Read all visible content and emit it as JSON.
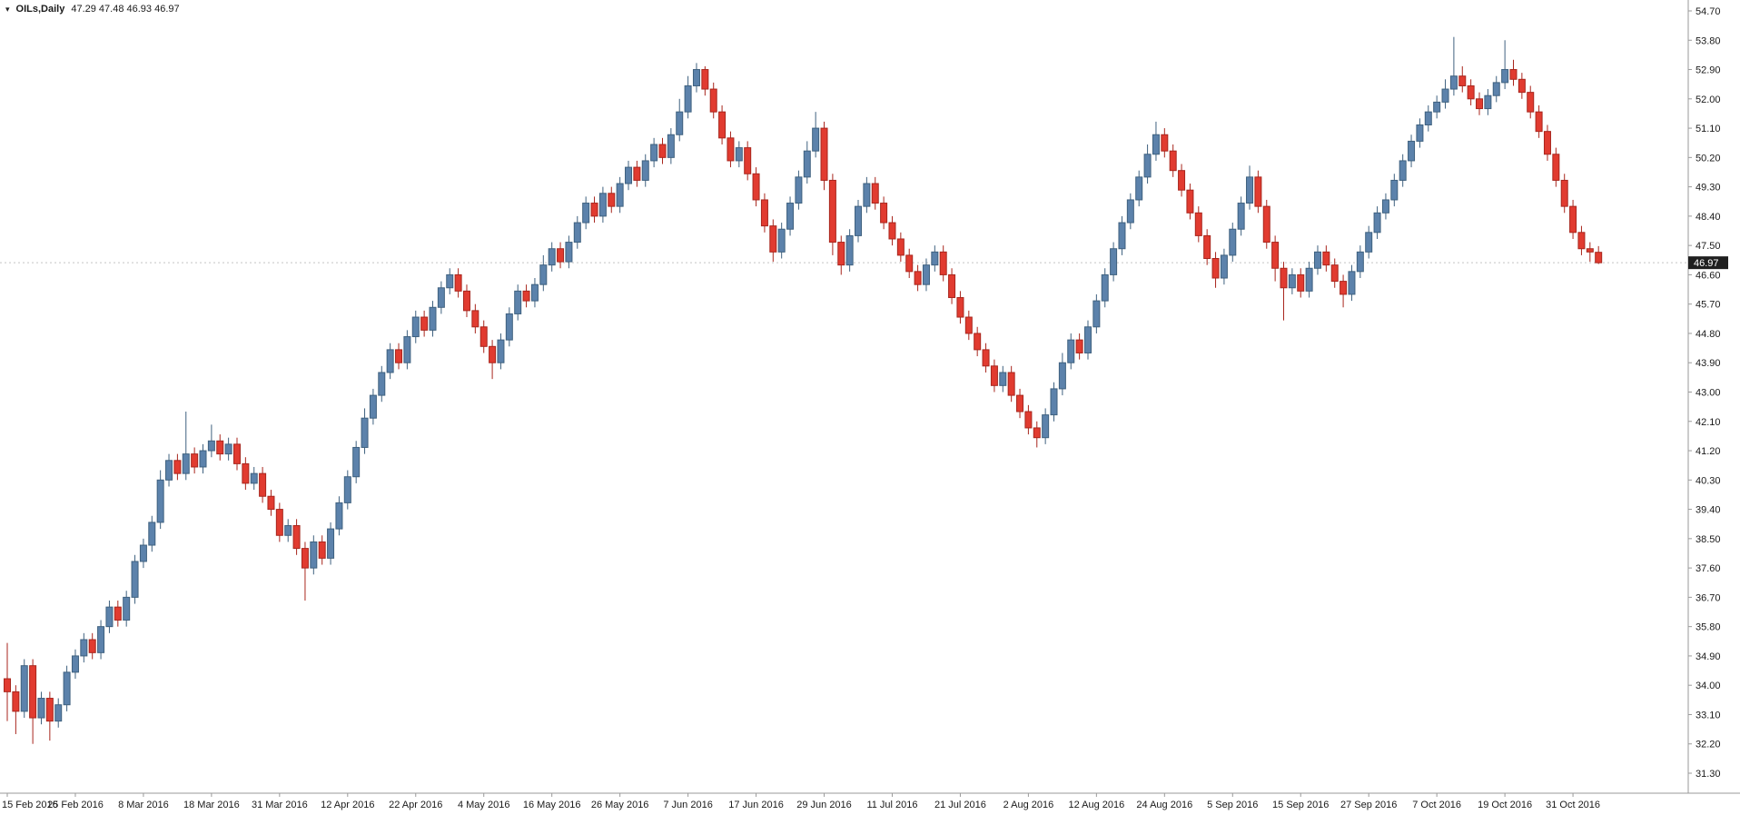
{
  "header": {
    "symbol_timeframe": "OILs,Daily",
    "ohlc_values": "47.29 47.48 46.93 46.97"
  },
  "chart_data": {
    "type": "candlestick",
    "symbol": "OILs",
    "timeframe": "Daily",
    "title": "OILs,Daily",
    "last_bar": {
      "open": 47.29,
      "high": 47.48,
      "low": 46.93,
      "close": 46.97
    },
    "current_price": 46.97,
    "current_price_label": "46.97",
    "y_axis": {
      "min": 31.3,
      "max": 54.7,
      "step": 0.9,
      "side": "right"
    },
    "y_ticks": [
      "54.70",
      "53.80",
      "52.90",
      "52.00",
      "51.10",
      "50.20",
      "49.30",
      "48.40",
      "47.50",
      "46.60",
      "45.70",
      "44.80",
      "43.90",
      "43.00",
      "42.10",
      "41.20",
      "40.30",
      "39.40",
      "38.50",
      "37.60",
      "36.70",
      "35.80",
      "34.90",
      "34.00",
      "33.10",
      "32.20",
      "31.30"
    ],
    "x_labels": [
      {
        "i": 0,
        "label": "15 Feb 2016"
      },
      {
        "i": 8,
        "label": "25 Feb 2016"
      },
      {
        "i": 16,
        "label": "8 Mar 2016"
      },
      {
        "i": 24,
        "label": "18 Mar 2016"
      },
      {
        "i": 32,
        "label": "31 Mar 2016"
      },
      {
        "i": 40,
        "label": "12 Apr 2016"
      },
      {
        "i": 48,
        "label": "22 Apr 2016"
      },
      {
        "i": 56,
        "label": "4 May 2016"
      },
      {
        "i": 64,
        "label": "16 May 2016"
      },
      {
        "i": 72,
        "label": "26 May 2016"
      },
      {
        "i": 80,
        "label": "7 Jun 2016"
      },
      {
        "i": 88,
        "label": "17 Jun 2016"
      },
      {
        "i": 96,
        "label": "29 Jun 2016"
      },
      {
        "i": 104,
        "label": "11 Jul 2016"
      },
      {
        "i": 112,
        "label": "21 Jul 2016"
      },
      {
        "i": 120,
        "label": "2 Aug 2016"
      },
      {
        "i": 128,
        "label": "12 Aug 2016"
      },
      {
        "i": 136,
        "label": "24 Aug 2016"
      },
      {
        "i": 144,
        "label": "5 Sep 2016"
      },
      {
        "i": 152,
        "label": "15 Sep 2016"
      },
      {
        "i": 160,
        "label": "27 Sep 2016"
      },
      {
        "i": 168,
        "label": "7 Oct 2016"
      },
      {
        "i": 176,
        "label": "19 Oct 2016"
      },
      {
        "i": 184,
        "label": "31 Oct 2016"
      }
    ],
    "colors": {
      "up_fill": "#5c82ab",
      "up_border": "#3f617f",
      "down_fill": "#e13b30",
      "down_border": "#a8261d",
      "axis_line": "#9a9a9a",
      "axis_text": "#1a1a1a",
      "price_line": "#c4c4c4",
      "price_tag_bg": "#1f1f1f",
      "price_tag_text": "#ffffff",
      "background": "#ffffff"
    },
    "candles": [
      [
        34.2,
        35.3,
        32.9,
        33.8
      ],
      [
        33.8,
        34,
        32.5,
        33.2
      ],
      [
        33.2,
        34.8,
        33,
        34.6
      ],
      [
        34.6,
        34.8,
        32.2,
        33
      ],
      [
        33,
        33.8,
        32.8,
        33.6
      ],
      [
        33.6,
        33.8,
        32.3,
        32.9
      ],
      [
        32.9,
        33.6,
        32.7,
        33.4
      ],
      [
        33.4,
        34.6,
        33.2,
        34.4
      ],
      [
        34.4,
        35.1,
        34.2,
        34.9
      ],
      [
        34.9,
        35.6,
        34.7,
        35.4
      ],
      [
        35.4,
        35.6,
        34.8,
        35
      ],
      [
        35,
        36,
        34.8,
        35.8
      ],
      [
        35.8,
        36.6,
        35.6,
        36.4
      ],
      [
        36.4,
        36.6,
        35.8,
        36
      ],
      [
        36,
        36.9,
        35.8,
        36.7
      ],
      [
        36.7,
        38,
        36.5,
        37.8
      ],
      [
        37.8,
        38.5,
        37.6,
        38.3
      ],
      [
        38.3,
        39.2,
        38.1,
        39
      ],
      [
        39,
        40.6,
        38.8,
        40.3
      ],
      [
        40.3,
        41.1,
        40.1,
        40.9
      ],
      [
        40.9,
        41.1,
        40.3,
        40.5
      ],
      [
        40.5,
        42.4,
        40.3,
        41.1
      ],
      [
        41.1,
        41.3,
        40.5,
        40.7
      ],
      [
        40.7,
        41.4,
        40.5,
        41.2
      ],
      [
        41.2,
        42,
        41,
        41.5
      ],
      [
        41.5,
        41.7,
        40.9,
        41.1
      ],
      [
        41.1,
        41.6,
        40.9,
        41.4
      ],
      [
        41.4,
        41.6,
        40.6,
        40.8
      ],
      [
        40.8,
        41,
        40,
        40.2
      ],
      [
        40.2,
        40.7,
        40,
        40.5
      ],
      [
        40.5,
        40.7,
        39.6,
        39.8
      ],
      [
        39.8,
        40,
        39.2,
        39.4
      ],
      [
        39.4,
        39.6,
        38.4,
        38.6
      ],
      [
        38.6,
        39.1,
        38.4,
        38.9
      ],
      [
        38.9,
        39.1,
        38,
        38.2
      ],
      [
        38.2,
        38.4,
        36.6,
        37.6
      ],
      [
        37.6,
        38.6,
        37.4,
        38.4
      ],
      [
        38.4,
        38.6,
        37.7,
        37.9
      ],
      [
        37.9,
        39,
        37.7,
        38.8
      ],
      [
        38.8,
        39.8,
        38.6,
        39.6
      ],
      [
        39.6,
        40.6,
        39.4,
        40.4
      ],
      [
        40.4,
        41.5,
        40.2,
        41.3
      ],
      [
        41.3,
        42.5,
        41.1,
        42.2
      ],
      [
        42.2,
        43.1,
        42,
        42.9
      ],
      [
        42.9,
        43.8,
        42.7,
        43.6
      ],
      [
        43.6,
        44.5,
        43.4,
        44.3
      ],
      [
        44.3,
        44.5,
        43.7,
        43.9
      ],
      [
        43.9,
        44.9,
        43.7,
        44.7
      ],
      [
        44.7,
        45.5,
        44.5,
        45.3
      ],
      [
        45.3,
        45.5,
        44.7,
        44.9
      ],
      [
        44.9,
        45.8,
        44.7,
        45.6
      ],
      [
        45.6,
        46.4,
        45.4,
        46.2
      ],
      [
        46.2,
        46.8,
        46,
        46.6
      ],
      [
        46.6,
        46.8,
        45.9,
        46.1
      ],
      [
        46.1,
        46.3,
        45.3,
        45.5
      ],
      [
        45.5,
        45.7,
        44.8,
        45
      ],
      [
        45,
        45.2,
        44.2,
        44.4
      ],
      [
        44.4,
        44.6,
        43.4,
        43.9
      ],
      [
        43.9,
        44.8,
        43.7,
        44.6
      ],
      [
        44.6,
        45.6,
        44.4,
        45.4
      ],
      [
        45.4,
        46.3,
        45.2,
        46.1
      ],
      [
        46.1,
        46.3,
        45.6,
        45.8
      ],
      [
        45.8,
        46.5,
        45.6,
        46.3
      ],
      [
        46.3,
        47.2,
        46.1,
        46.9
      ],
      [
        46.9,
        47.6,
        46.7,
        47.4
      ],
      [
        47.4,
        47.6,
        46.8,
        47
      ],
      [
        47,
        47.8,
        46.8,
        47.6
      ],
      [
        47.6,
        48.4,
        47.4,
        48.2
      ],
      [
        48.2,
        49,
        48,
        48.8
      ],
      [
        48.8,
        49,
        48.2,
        48.4
      ],
      [
        48.4,
        49.3,
        48.2,
        49.1
      ],
      [
        49.1,
        49.3,
        48.5,
        48.7
      ],
      [
        48.7,
        49.6,
        48.5,
        49.4
      ],
      [
        49.4,
        50.1,
        49.2,
        49.9
      ],
      [
        49.9,
        50.1,
        49.3,
        49.5
      ],
      [
        49.5,
        50.3,
        49.3,
        50.1
      ],
      [
        50.1,
        50.8,
        49.9,
        50.6
      ],
      [
        50.6,
        50.8,
        50,
        50.2
      ],
      [
        50.2,
        51.1,
        50,
        50.9
      ],
      [
        50.9,
        52,
        50.7,
        51.6
      ],
      [
        51.6,
        52.7,
        51.4,
        52.4
      ],
      [
        52.4,
        53.1,
        52.2,
        52.9
      ],
      [
        52.9,
        53,
        52.1,
        52.3
      ],
      [
        52.3,
        52.5,
        51.4,
        51.6
      ],
      [
        51.6,
        51.8,
        50.6,
        50.8
      ],
      [
        50.8,
        51,
        49.9,
        50.1
      ],
      [
        50.1,
        50.7,
        49.9,
        50.5
      ],
      [
        50.5,
        50.7,
        49.5,
        49.7
      ],
      [
        49.7,
        49.9,
        48.7,
        48.9
      ],
      [
        48.9,
        49.1,
        47.9,
        48.1
      ],
      [
        48.1,
        48.3,
        47,
        47.3
      ],
      [
        47.3,
        48.2,
        47.1,
        48
      ],
      [
        48,
        49,
        47.8,
        48.8
      ],
      [
        48.8,
        49.8,
        48.6,
        49.6
      ],
      [
        49.6,
        50.7,
        49.4,
        50.4
      ],
      [
        50.4,
        51.6,
        50.2,
        51.1
      ],
      [
        51.1,
        51.3,
        49.2,
        49.5
      ],
      [
        49.5,
        49.7,
        47.2,
        47.6
      ],
      [
        47.6,
        47.8,
        46.6,
        46.9
      ],
      [
        46.9,
        48,
        46.7,
        47.8
      ],
      [
        47.8,
        48.9,
        47.6,
        48.7
      ],
      [
        48.7,
        49.6,
        48.5,
        49.4
      ],
      [
        49.4,
        49.6,
        48.6,
        48.8
      ],
      [
        48.8,
        49,
        48,
        48.2
      ],
      [
        48.2,
        48.4,
        47.5,
        47.7
      ],
      [
        47.7,
        47.9,
        47,
        47.2
      ],
      [
        47.2,
        47.4,
        46.5,
        46.7
      ],
      [
        46.7,
        46.9,
        46.1,
        46.3
      ],
      [
        46.3,
        47.1,
        46.1,
        46.9
      ],
      [
        46.9,
        47.5,
        46.7,
        47.3
      ],
      [
        47.3,
        47.5,
        46.4,
        46.6
      ],
      [
        46.6,
        46.8,
        45.7,
        45.9
      ],
      [
        45.9,
        46.1,
        45.1,
        45.3
      ],
      [
        45.3,
        45.5,
        44.6,
        44.8
      ],
      [
        44.8,
        45,
        44.1,
        44.3
      ],
      [
        44.3,
        44.5,
        43.6,
        43.8
      ],
      [
        43.8,
        44,
        43,
        43.2
      ],
      [
        43.2,
        43.8,
        43,
        43.6
      ],
      [
        43.6,
        43.8,
        42.7,
        42.9
      ],
      [
        42.9,
        43.1,
        42.2,
        42.4
      ],
      [
        42.4,
        42.6,
        41.7,
        41.9
      ],
      [
        41.9,
        42.1,
        41.3,
        41.6
      ],
      [
        41.6,
        42.5,
        41.4,
        42.3
      ],
      [
        42.3,
        43.3,
        42.1,
        43.1
      ],
      [
        43.1,
        44.2,
        42.9,
        43.9
      ],
      [
        43.9,
        44.8,
        43.7,
        44.6
      ],
      [
        44.6,
        44.8,
        44,
        44.2
      ],
      [
        44.2,
        45.2,
        44,
        45
      ],
      [
        45,
        46,
        44.8,
        45.8
      ],
      [
        45.8,
        46.8,
        45.6,
        46.6
      ],
      [
        46.6,
        47.6,
        46.4,
        47.4
      ],
      [
        47.4,
        48.4,
        47.2,
        48.2
      ],
      [
        48.2,
        49.1,
        48,
        48.9
      ],
      [
        48.9,
        49.8,
        48.7,
        49.6
      ],
      [
        49.6,
        50.6,
        49.4,
        50.3
      ],
      [
        50.3,
        51.3,
        50.1,
        50.9
      ],
      [
        50.9,
        51.1,
        50.2,
        50.4
      ],
      [
        50.4,
        50.6,
        49.6,
        49.8
      ],
      [
        49.8,
        50,
        49,
        49.2
      ],
      [
        49.2,
        49.4,
        48.3,
        48.5
      ],
      [
        48.5,
        48.7,
        47.6,
        47.8
      ],
      [
        47.8,
        48,
        46.9,
        47.1
      ],
      [
        47.1,
        47.3,
        46.2,
        46.5
      ],
      [
        46.5,
        47.4,
        46.3,
        47.2
      ],
      [
        47.2,
        48.2,
        47,
        48
      ],
      [
        48,
        49,
        47.8,
        48.8
      ],
      [
        48.8,
        49.95,
        48.6,
        49.6
      ],
      [
        49.6,
        49.8,
        48.5,
        48.7
      ],
      [
        48.7,
        48.9,
        47.4,
        47.6
      ],
      [
        47.6,
        47.8,
        46.4,
        46.8
      ],
      [
        46.8,
        47,
        45.2,
        46.2
      ],
      [
        46.2,
        46.8,
        46,
        46.6
      ],
      [
        46.6,
        46.8,
        45.9,
        46.1
      ],
      [
        46.1,
        47,
        45.9,
        46.8
      ],
      [
        46.8,
        47.5,
        46.6,
        47.3
      ],
      [
        47.3,
        47.5,
        46.7,
        46.9
      ],
      [
        46.9,
        47.1,
        46.2,
        46.4
      ],
      [
        46.4,
        46.6,
        45.6,
        46
      ],
      [
        46,
        46.9,
        45.8,
        46.7
      ],
      [
        46.7,
        47.5,
        46.5,
        47.3
      ],
      [
        47.3,
        48.1,
        47.1,
        47.9
      ],
      [
        47.9,
        48.7,
        47.7,
        48.5
      ],
      [
        48.5,
        49.1,
        48.3,
        48.9
      ],
      [
        48.9,
        49.7,
        48.7,
        49.5
      ],
      [
        49.5,
        50.3,
        49.3,
        50.1
      ],
      [
        50.1,
        50.9,
        49.9,
        50.7
      ],
      [
        50.7,
        51.4,
        50.5,
        51.2
      ],
      [
        51.2,
        51.8,
        51,
        51.6
      ],
      [
        51.6,
        52.1,
        51.4,
        51.9
      ],
      [
        51.9,
        52.6,
        51.7,
        52.3
      ],
      [
        52.3,
        53.9,
        52.1,
        52.7
      ],
      [
        52.7,
        53,
        52.2,
        52.4
      ],
      [
        52.4,
        52.6,
        51.8,
        52
      ],
      [
        52,
        52.2,
        51.5,
        51.7
      ],
      [
        51.7,
        52.3,
        51.5,
        52.1
      ],
      [
        52.1,
        52.7,
        51.9,
        52.5
      ],
      [
        52.5,
        53.8,
        52.3,
        52.9
      ],
      [
        52.9,
        53.2,
        52.4,
        52.6
      ],
      [
        52.6,
        52.8,
        52,
        52.2
      ],
      [
        52.2,
        52.4,
        51.4,
        51.6
      ],
      [
        51.6,
        51.8,
        50.8,
        51
      ],
      [
        51,
        51.2,
        50.1,
        50.3
      ],
      [
        50.3,
        50.5,
        49.3,
        49.5
      ],
      [
        49.5,
        49.7,
        48.5,
        48.7
      ],
      [
        48.7,
        48.9,
        47.7,
        47.9
      ],
      [
        47.9,
        48.1,
        47.2,
        47.4
      ],
      [
        47.4,
        47.6,
        47,
        47.3
      ],
      [
        47.29,
        47.48,
        46.93,
        46.97
      ]
    ]
  }
}
